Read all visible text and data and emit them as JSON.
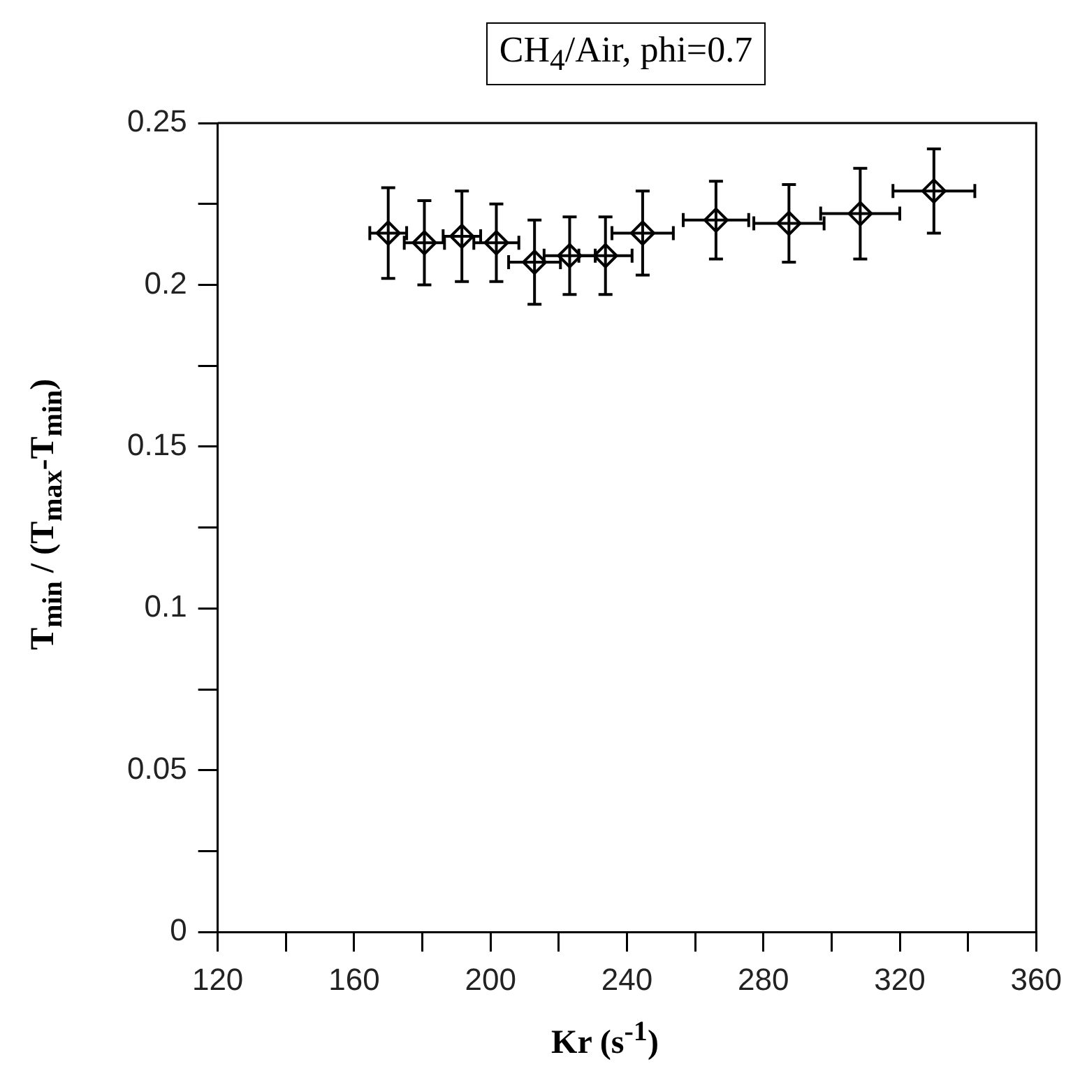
{
  "chart_data": {
    "type": "scatter",
    "title": "CH$_{4}$/Air, phi=0.7",
    "xlabel": "Kr (s$^{-1}$)",
    "ylabel": "T$_{min}$ / (T$_{max}$-T$_{min}$)",
    "x": [
      170.0,
      180.6,
      191.6,
      201.7,
      212.9,
      223.2,
      233.7,
      244.6,
      266.1,
      287.5,
      308.4,
      330.0
    ],
    "values": [
      0.216,
      0.213,
      0.215,
      0.213,
      0.207,
      0.209,
      0.209,
      0.216,
      0.22,
      0.219,
      0.222,
      0.229
    ],
    "errors": [
      0.014,
      0.013,
      0.014,
      0.012,
      0.013,
      0.012,
      0.012,
      0.013,
      0.012,
      0.012,
      0.014,
      0.013
    ],
    "xerrors": [
      5.4,
      5.9,
      5.5,
      6.6,
      7.6,
      7.5,
      7.8,
      9,
      9.6,
      10.3,
      11.6,
      12
    ],
    "color": "#000000",
    "marker": "diamond",
    "grid": false,
    "legend": false,
    "xlim": [
      120,
      360
    ],
    "xticks": [
      120,
      {
        "value": 140,
        "label": null
      },
      160,
      {
        "value": 180,
        "label": null
      },
      200,
      {
        "value": 220,
        "label": null
      },
      240,
      {
        "value": 260,
        "label": null
      },
      280,
      {
        "value": 300,
        "label": null
      },
      320,
      {
        "value": 340,
        "label": null
      },
      360
    ],
    "ylim": [
      0,
      0.25
    ],
    "yticks": [
      0,
      {
        "value": 0.025,
        "label": null
      },
      0.05,
      {
        "value": 0.075,
        "label": null
      },
      0.1,
      {
        "value": 0.125,
        "label": null
      },
      0.15,
      {
        "value": 0.175,
        "label": null
      },
      0.2,
      {
        "value": 0.225,
        "label": null
      },
      0.25
    ]
  }
}
